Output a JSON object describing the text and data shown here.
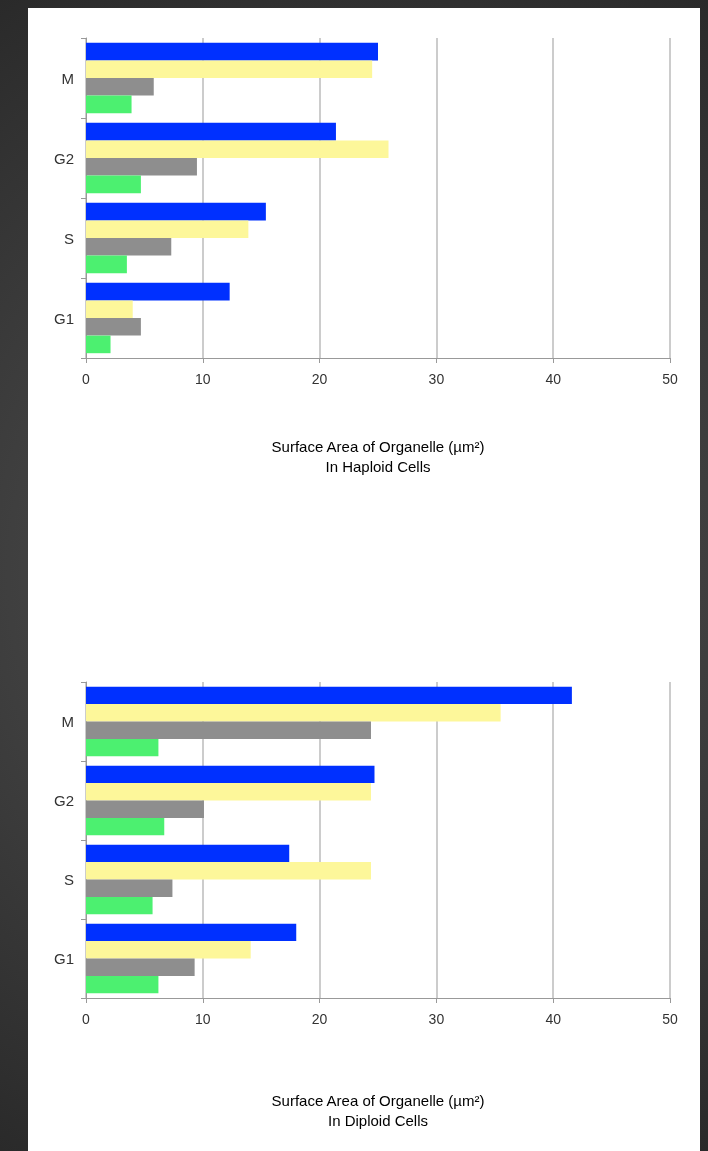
{
  "chart_data": [
    {
      "type": "bar",
      "orientation": "horizontal",
      "xlabel": "Surface Area of Organelle (µm²)\nIn Haploid Cells",
      "categories": [
        "M",
        "G2",
        "S",
        "G1"
      ],
      "xlim": [
        0,
        50
      ],
      "xticks": [
        0,
        10,
        20,
        30,
        40,
        50
      ],
      "grid": "x",
      "series": [
        {
          "color": "#0030ff",
          "values": [
            25.0,
            21.4,
            15.4,
            12.3
          ]
        },
        {
          "color": "#fdf79a",
          "values": [
            24.5,
            25.9,
            13.9,
            4.0
          ]
        },
        {
          "color": "#8e8e8e",
          "values": [
            5.8,
            9.5,
            7.3,
            4.7
          ]
        },
        {
          "color": "#4cf070",
          "values": [
            3.9,
            4.7,
            3.5,
            2.1
          ]
        }
      ]
    },
    {
      "type": "bar",
      "orientation": "horizontal",
      "xlabel": "Surface Area of Organelle (µm²)\nIn Diploid Cells",
      "categories": [
        "M",
        "G2",
        "S",
        "G1"
      ],
      "xlim": [
        0,
        50
      ],
      "xticks": [
        0,
        10,
        20,
        30,
        40,
        50
      ],
      "grid": "x",
      "series": [
        {
          "color": "#0030ff",
          "values": [
            41.6,
            24.7,
            17.4,
            18.0
          ]
        },
        {
          "color": "#fdf79a",
          "values": [
            35.5,
            24.4,
            24.4,
            14.1
          ]
        },
        {
          "color": "#8e8e8e",
          "values": [
            24.4,
            10.1,
            7.4,
            9.3
          ]
        },
        {
          "color": "#4cf070",
          "values": [
            6.2,
            6.7,
            5.7,
            6.2
          ]
        }
      ]
    }
  ]
}
